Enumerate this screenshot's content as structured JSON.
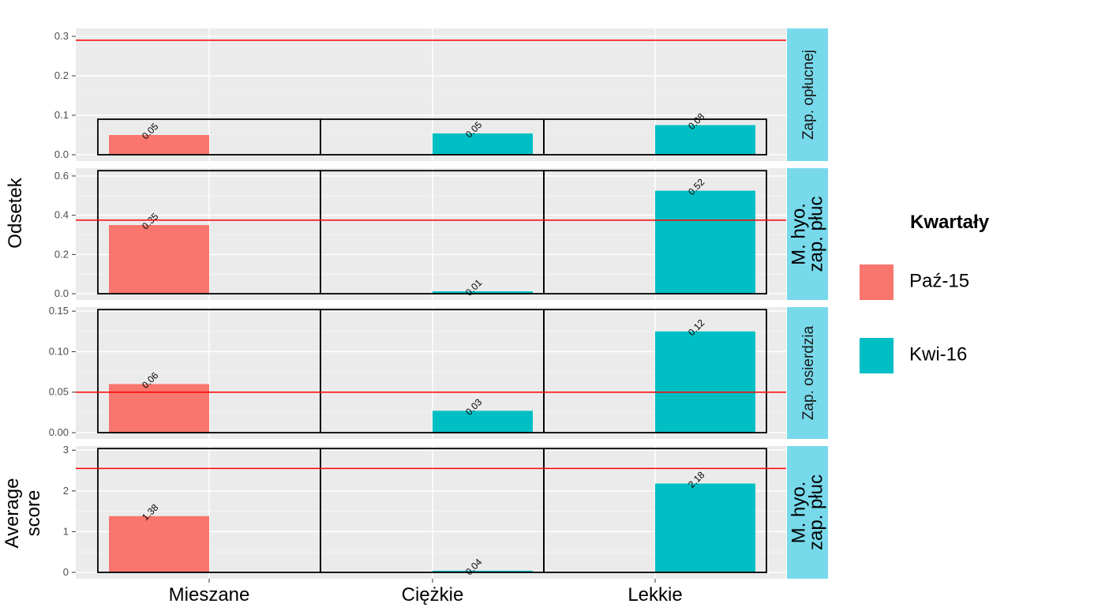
{
  "chart_data": {
    "type": "bar",
    "categories": [
      "Mieszane",
      "Ciężkie",
      "Lekkie"
    ],
    "legend": {
      "title": "Kwartały",
      "placement": "right",
      "items": [
        {
          "label": "Paź-15",
          "color": "#F8766D"
        },
        {
          "label": "Kwi-16",
          "color": "#00BFC4"
        }
      ]
    },
    "ylabel_group_1": "Odsetek",
    "ylabel_group_2": "Average score",
    "reference_line_color": "#FF0000",
    "grid": true,
    "panels": [
      {
        "strip": "Zap. opłucnej",
        "ylim": [
          0,
          0.32
        ],
        "ticks": [
          "0.0",
          "0.1",
          "0.2",
          "0.3"
        ],
        "reference_line": 0.29,
        "bars": [
          {
            "category": "Mieszane",
            "series": "Paź-15",
            "value": 0.05,
            "label": "0.05"
          },
          {
            "category": "Ciężkie",
            "series": "Kwi-16",
            "value": 0.054,
            "label": "0.05"
          },
          {
            "category": "Lekkie",
            "series": "Kwi-16",
            "value": 0.075,
            "label": "0.08"
          }
        ]
      },
      {
        "strip": "M. hyo. zap. płuc",
        "ylim": [
          0,
          0.64
        ],
        "ticks": [
          "0.0",
          "0.2",
          "0.4",
          "0.6"
        ],
        "reference_line": 0.375,
        "bars": [
          {
            "category": "Mieszane",
            "series": "Paź-15",
            "value": 0.35,
            "label": "0.35"
          },
          {
            "category": "Ciężkie",
            "series": "Kwi-16",
            "value": 0.012,
            "label": "0.01"
          },
          {
            "category": "Lekkie",
            "series": "Kwi-16",
            "value": 0.525,
            "label": "0.52"
          }
        ]
      },
      {
        "strip": "Zap. osierdzia",
        "ylim": [
          0,
          0.155
        ],
        "ticks": [
          "0.00",
          "0.05",
          "0.10",
          "0.15"
        ],
        "reference_line": 0.05,
        "bars": [
          {
            "category": "Mieszane",
            "series": "Paź-15",
            "value": 0.06,
            "label": "0.06"
          },
          {
            "category": "Ciężkie",
            "series": "Kwi-16",
            "value": 0.027,
            "label": "0.03"
          },
          {
            "category": "Lekkie",
            "series": "Kwi-16",
            "value": 0.125,
            "label": "0.12"
          }
        ]
      },
      {
        "strip": "M. hyo. zap. płuc",
        "ylim": [
          0,
          3.1
        ],
        "ticks": [
          "0",
          "1",
          "2",
          "3"
        ],
        "reference_line": 2.55,
        "bars": [
          {
            "category": "Mieszane",
            "series": "Paź-15",
            "value": 1.38,
            "label": "1.38"
          },
          {
            "category": "Ciężkie",
            "series": "Kwi-16",
            "value": 0.04,
            "label": "0.04"
          },
          {
            "category": "Lekkie",
            "series": "Kwi-16",
            "value": 2.18,
            "label": "2.18"
          }
        ]
      }
    ]
  }
}
